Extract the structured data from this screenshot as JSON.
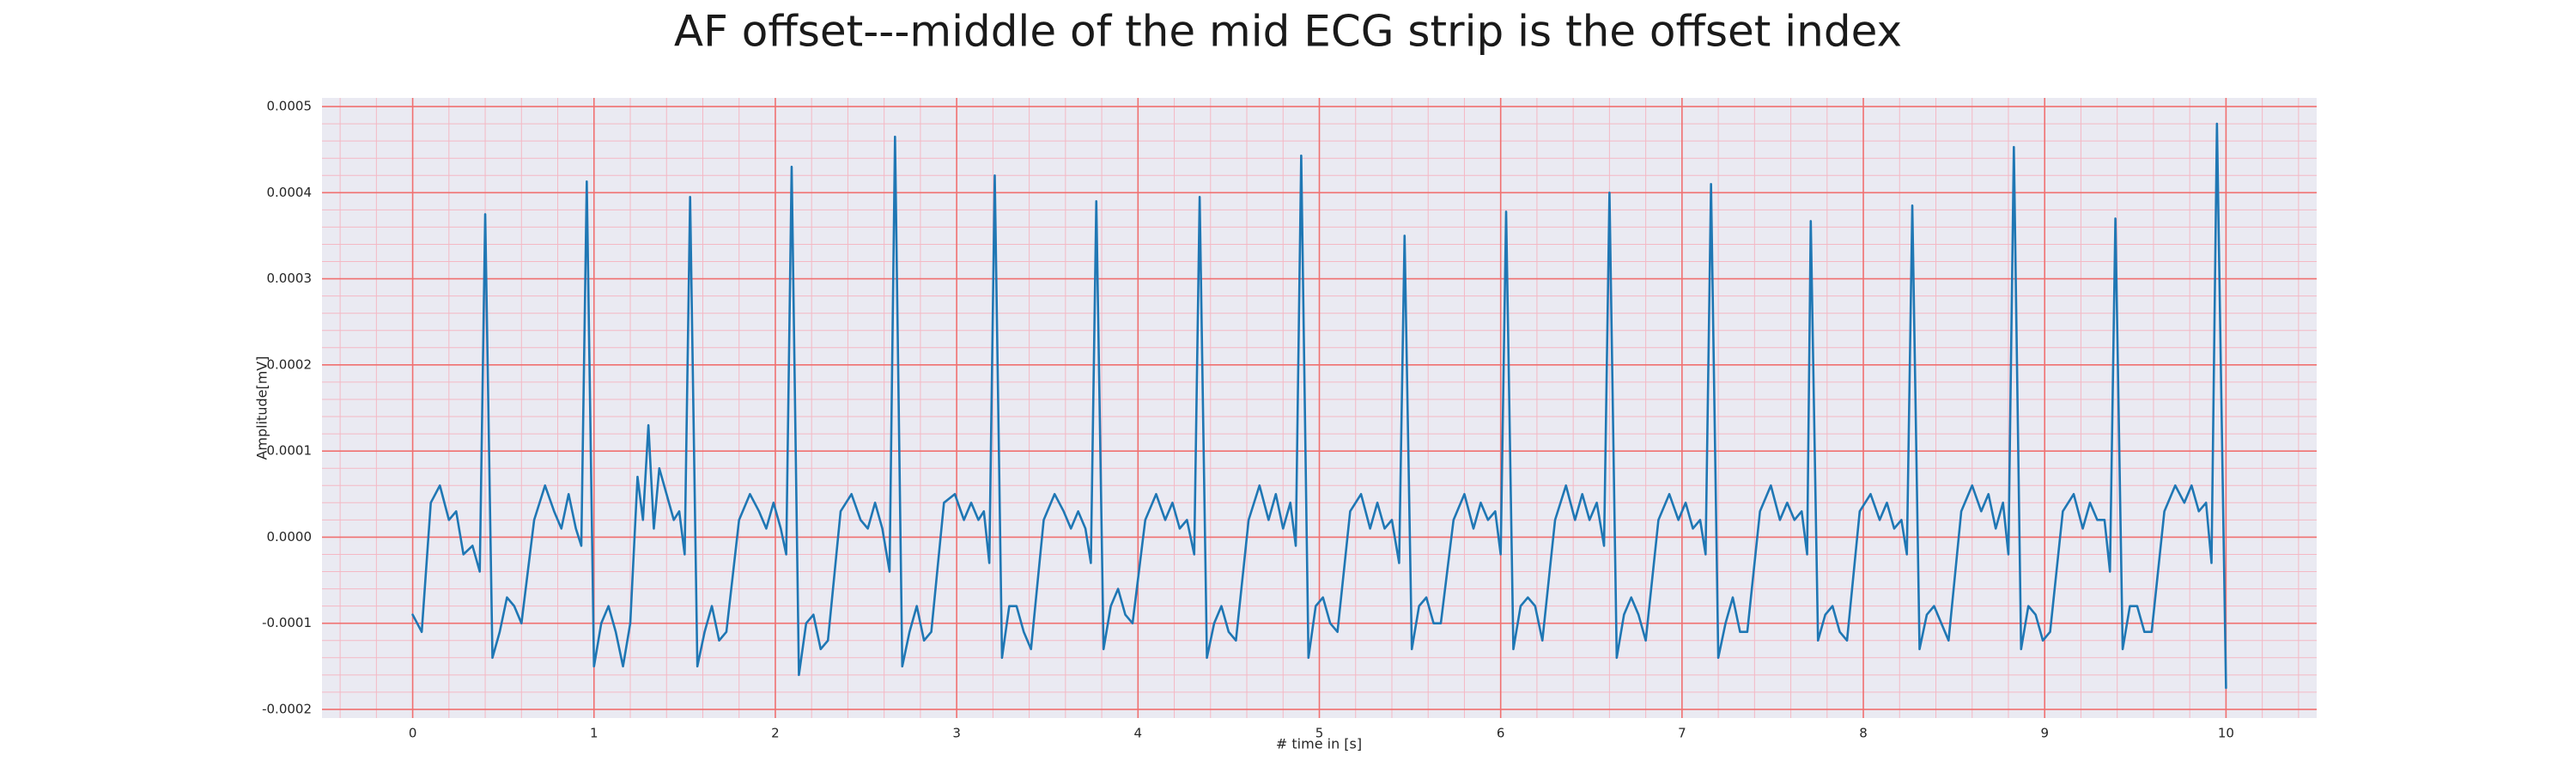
{
  "chart_data": {
    "type": "line",
    "title": "AF offset---middle of the mid ECG strip is the offset index",
    "xlabel": "# time in [s]",
    "ylabel": "Amplitude[mV]",
    "xlim": [
      -0.5,
      10.5
    ],
    "ylim": [
      -0.00021,
      0.00051
    ],
    "xticks": [
      0,
      1,
      2,
      3,
      4,
      5,
      6,
      7,
      8,
      9,
      10
    ],
    "yticks": [
      -0.0002,
      -0.0001,
      {
        "value": 0,
        "label": "0.0000"
      },
      0.0001,
      0.0002,
      0.0003,
      0.0004,
      0.0005
    ],
    "grid": true,
    "minor_grid": true,
    "background": "#eaeaf2",
    "grid_color": "#f07070",
    "minor_grid_color": "#f4b8c4",
    "series": [
      {
        "color": "#1f77b4",
        "x": [
          0,
          0.05,
          0.1,
          0.15,
          0.2,
          0.24,
          0.28,
          0.33,
          0.37,
          0.4,
          0.44,
          0.48,
          0.52,
          0.56,
          0.6,
          0.67,
          0.73,
          0.78,
          0.82,
          0.86,
          0.9,
          0.93,
          0.96,
          1.0,
          1.04,
          1.08,
          1.12,
          1.16,
          1.2,
          1.24,
          1.27,
          1.3,
          1.33,
          1.36,
          1.4,
          1.44,
          1.47,
          1.5,
          1.53,
          1.57,
          1.61,
          1.65,
          1.69,
          1.73,
          1.8,
          1.86,
          1.91,
          1.95,
          1.99,
          2.03,
          2.06,
          2.09,
          2.13,
          2.17,
          2.21,
          2.25,
          2.29,
          2.36,
          2.42,
          2.47,
          2.51,
          2.55,
          2.59,
          2.63,
          2.66,
          2.7,
          2.74,
          2.78,
          2.82,
          2.86,
          2.93,
          2.99,
          3.04,
          3.08,
          3.12,
          3.15,
          3.18,
          3.21,
          3.25,
          3.29,
          3.33,
          3.37,
          3.41,
          3.48,
          3.54,
          3.59,
          3.63,
          3.67,
          3.71,
          3.74,
          3.77,
          3.81,
          3.85,
          3.89,
          3.93,
          3.97,
          4.04,
          4.1,
          4.15,
          4.19,
          4.23,
          4.27,
          4.31,
          4.34,
          4.38,
          4.42,
          4.46,
          4.5,
          4.54,
          4.61,
          4.67,
          4.72,
          4.76,
          4.8,
          4.84,
          4.87,
          4.9,
          4.94,
          4.98,
          5.02,
          5.06,
          5.1,
          5.17,
          5.23,
          5.28,
          5.32,
          5.36,
          5.4,
          5.44,
          5.47,
          5.51,
          5.55,
          5.59,
          5.63,
          5.67,
          5.74,
          5.8,
          5.85,
          5.89,
          5.93,
          5.97,
          6.0,
          6.03,
          6.07,
          6.11,
          6.15,
          6.19,
          6.23,
          6.3,
          6.36,
          6.41,
          6.45,
          6.49,
          6.53,
          6.57,
          6.6,
          6.64,
          6.68,
          6.72,
          6.76,
          6.8,
          6.87,
          6.93,
          6.98,
          7.02,
          7.06,
          7.1,
          7.13,
          7.16,
          7.2,
          7.24,
          7.28,
          7.32,
          7.36,
          7.43,
          7.49,
          7.54,
          7.58,
          7.62,
          7.66,
          7.69,
          7.71,
          7.75,
          7.79,
          7.83,
          7.87,
          7.91,
          7.98,
          8.04,
          8.09,
          8.13,
          8.17,
          8.21,
          8.24,
          8.27,
          8.31,
          8.35,
          8.39,
          8.43,
          8.47,
          8.54,
          8.6,
          8.65,
          8.69,
          8.73,
          8.77,
          8.8,
          8.83,
          8.87,
          8.91,
          8.95,
          8.99,
          9.03,
          9.1,
          9.16,
          9.21,
          9.25,
          9.29,
          9.33,
          9.36,
          9.39,
          9.43,
          9.47,
          9.51,
          9.55,
          9.59,
          9.66,
          9.72,
          9.77,
          9.81,
          9.85,
          9.89,
          9.92,
          9.95,
          10.0
        ],
        "values": [
          -9e-05,
          -0.00011,
          4e-05,
          6e-05,
          2e-05,
          3e-05,
          -2e-05,
          -1e-05,
          -4e-05,
          0.000375,
          -0.00014,
          -0.00011,
          -7e-05,
          -8e-05,
          -0.0001,
          2e-05,
          6e-05,
          3e-05,
          1e-05,
          5e-05,
          1e-05,
          -1e-05,
          0.000413,
          -0.00015,
          -0.0001,
          -8e-05,
          -0.00011,
          -0.00015,
          -0.0001,
          7e-05,
          2e-05,
          0.00013,
          1e-05,
          8e-05,
          5e-05,
          2e-05,
          3e-05,
          -2e-05,
          0.000395,
          -0.00015,
          -0.00011,
          -8e-05,
          -0.00012,
          -0.00011,
          2e-05,
          5e-05,
          3e-05,
          1e-05,
          4e-05,
          1e-05,
          -2e-05,
          0.00043,
          -0.00016,
          -0.0001,
          -9e-05,
          -0.00013,
          -0.00012,
          3e-05,
          5e-05,
          2e-05,
          1e-05,
          4e-05,
          1e-05,
          -4e-05,
          0.000465,
          -0.00015,
          -0.00011,
          -8e-05,
          -0.00012,
          -0.00011,
          4e-05,
          5e-05,
          2e-05,
          4e-05,
          2e-05,
          3e-05,
          -3e-05,
          0.00042,
          -0.00014,
          -8e-05,
          -8e-05,
          -0.00011,
          -0.00013,
          2e-05,
          5e-05,
          3e-05,
          1e-05,
          3e-05,
          1e-05,
          -3e-05,
          0.00039,
          -0.00013,
          -8e-05,
          -6e-05,
          -9e-05,
          -0.0001,
          2e-05,
          5e-05,
          2e-05,
          4e-05,
          1e-05,
          2e-05,
          -2e-05,
          0.000395,
          -0.00014,
          -0.0001,
          -8e-05,
          -0.00011,
          -0.00012,
          2e-05,
          6e-05,
          2e-05,
          5e-05,
          1e-05,
          4e-05,
          -1e-05,
          0.000443,
          -0.00014,
          -8e-05,
          -7e-05,
          -0.0001,
          -0.00011,
          3e-05,
          5e-05,
          1e-05,
          4e-05,
          1e-05,
          2e-05,
          -3e-05,
          0.00035,
          -0.00013,
          -8e-05,
          -7e-05,
          -0.0001,
          -0.0001,
          2e-05,
          5e-05,
          1e-05,
          4e-05,
          2e-05,
          3e-05,
          -2e-05,
          0.000378,
          -0.00013,
          -8e-05,
          -7e-05,
          -8e-05,
          -0.00012,
          2e-05,
          6e-05,
          2e-05,
          5e-05,
          2e-05,
          4e-05,
          -1e-05,
          0.0004,
          -0.00014,
          -9e-05,
          -7e-05,
          -9e-05,
          -0.00012,
          2e-05,
          5e-05,
          2e-05,
          4e-05,
          1e-05,
          2e-05,
          -2e-05,
          0.00041,
          -0.00014,
          -0.0001,
          -7e-05,
          -0.00011,
          -0.00011,
          3e-05,
          6e-05,
          2e-05,
          4e-05,
          2e-05,
          3e-05,
          -2e-05,
          0.000367,
          -0.00012,
          -9e-05,
          -8e-05,
          -0.00011,
          -0.00012,
          3e-05,
          5e-05,
          2e-05,
          4e-05,
          1e-05,
          2e-05,
          -2e-05,
          0.000385,
          -0.00013,
          -9e-05,
          -8e-05,
          -0.0001,
          -0.00012,
          3e-05,
          6e-05,
          3e-05,
          5e-05,
          1e-05,
          4e-05,
          -2e-05,
          0.000453,
          -0.00013,
          -8e-05,
          -9e-05,
          -0.00012,
          -0.00011,
          3e-05,
          5e-05,
          1e-05,
          4e-05,
          2e-05,
          2e-05,
          -4e-05,
          0.00037,
          -0.00013,
          -8e-05,
          -8e-05,
          -0.00011,
          -0.00011,
          3e-05,
          6e-05,
          4e-05,
          6e-05,
          3e-05,
          4e-05,
          -3e-05,
          0.00048,
          -0.000175
        ]
      }
    ]
  }
}
